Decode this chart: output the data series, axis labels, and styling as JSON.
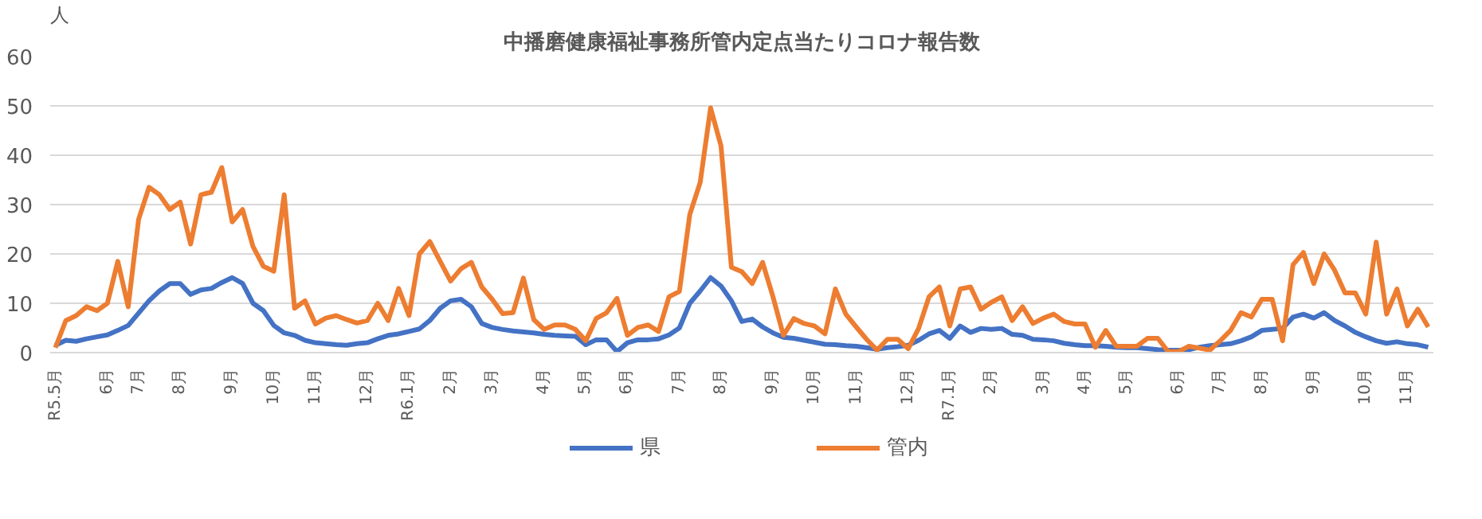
{
  "chart_data": {
    "type": "line",
    "title": "中播磨健康福祉事務所管内定点当たりコロナ報告数",
    "ylabel": "人",
    "categories": [
      "R5.5月",
      null,
      null,
      null,
      null,
      "6月",
      null,
      null,
      "7月",
      null,
      null,
      null,
      "8月",
      null,
      null,
      null,
      null,
      "9月",
      null,
      null,
      null,
      "10月",
      null,
      null,
      null,
      "11月",
      null,
      null,
      null,
      null,
      "12月",
      null,
      null,
      null,
      "R6.1月",
      null,
      null,
      null,
      "2月",
      null,
      null,
      null,
      "3月",
      null,
      null,
      null,
      null,
      "4月",
      null,
      null,
      null,
      "5月",
      null,
      null,
      null,
      "6月",
      null,
      null,
      null,
      null,
      "7月",
      null,
      null,
      null,
      "8月",
      null,
      null,
      null,
      null,
      "9月",
      null,
      null,
      null,
      "10月",
      null,
      null,
      null,
      "11月",
      null,
      null,
      null,
      null,
      "12月",
      null,
      null,
      null,
      "R7.1月",
      null,
      null,
      null,
      "2月",
      null,
      null,
      null,
      null,
      "3月",
      null,
      null,
      null,
      "4月",
      null,
      null,
      null,
      "5月",
      null,
      null,
      null,
      null,
      "6月",
      null,
      null,
      null,
      "7月",
      null,
      null,
      null,
      "8月",
      null,
      null,
      null,
      null,
      "9月",
      null,
      null,
      null,
      null,
      "10月",
      null,
      null,
      null,
      "11月",
      null,
      null
    ],
    "series": [
      {
        "name": "県",
        "color": "#4472c4",
        "values": [
          1.5,
          2.5,
          2.3,
          2.8,
          3.2,
          3.6,
          4.5,
          5.5,
          8,
          10.5,
          12.5,
          14,
          14,
          11.8,
          12.7,
          13,
          14.2,
          15.2,
          14,
          10,
          8.5,
          5.5,
          4,
          3.5,
          2.5,
          2,
          1.8,
          1.6,
          1.5,
          1.8,
          2,
          2.8,
          3.5,
          3.8,
          4.3,
          4.8,
          6.5,
          9,
          10.5,
          10.8,
          9.3,
          5.9,
          5.1,
          4.7,
          4.4,
          4.2,
          4.0,
          3.7,
          3.5,
          3.4,
          3.3,
          1.6,
          2.6,
          2.6,
          0.2,
          2.0,
          2.6,
          2.6,
          2.8,
          3.6,
          5.0,
          10,
          12.5,
          15.2,
          13.5,
          10.5,
          6.3,
          6.8,
          5.2,
          4.0,
          3.1,
          2.9,
          2.5,
          2.1,
          1.7,
          1.6,
          1.4,
          1.3,
          1.0,
          0.7,
          1.0,
          1.2,
          1.5,
          2.5,
          3.8,
          4.5,
          2.9,
          5.4,
          4.1,
          4.9,
          4.7,
          4.9,
          3.7,
          3.5,
          2.7,
          2.6,
          2.4,
          1.9,
          1.6,
          1.4,
          1.4,
          1.3,
          1.1,
          1.0,
          1.0,
          0.8,
          0.6,
          0.5,
          0.5,
          0.6,
          1.1,
          1.4,
          1.6,
          1.8,
          2.4,
          3.2,
          4.5,
          4.7,
          4.9,
          7.2,
          7.8,
          7.0,
          8.1,
          6.5,
          5.4,
          4.1,
          3.2,
          2.4,
          1.9,
          2.2,
          1.8,
          1.6,
          1.1
        ]
      },
      {
        "name": "管内",
        "color": "#ed7d31",
        "values": [
          1,
          6.5,
          7.5,
          9.3,
          8.5,
          10,
          18.5,
          9.3,
          27,
          33.5,
          32,
          29,
          30.5,
          22,
          32,
          32.5,
          37.5,
          26.5,
          29,
          21.5,
          17.5,
          16.5,
          32,
          9,
          10.5,
          5.8,
          7,
          7.5,
          6.7,
          6,
          6.5,
          10,
          6.5,
          13,
          7.5,
          20,
          22.5,
          18.5,
          14.5,
          17,
          18.3,
          13.3,
          10.8,
          7.9,
          8.1,
          15.1,
          6.7,
          4.7,
          5.6,
          5.6,
          4.7,
          2.4,
          6.9,
          8.1,
          11,
          3.5,
          5.1,
          5.6,
          4.3,
          11.3,
          12.4,
          28,
          34.5,
          49.6,
          41.9,
          17.3,
          16.4,
          14,
          18.3,
          11.3,
          3.5,
          6.9,
          5.9,
          5.4,
          3.8,
          12.9,
          7.8,
          5.2,
          2.7,
          0.5,
          2.7,
          2.7,
          0.8,
          4.9,
          11.3,
          13.3,
          5.4,
          12.9,
          13.3,
          8.8,
          10.2,
          11.3,
          6.5,
          9.3,
          5.9,
          7,
          7.8,
          6.3,
          5.8,
          5.8,
          1.1,
          4.5,
          1.3,
          1.3,
          1.3,
          2.9,
          2.9,
          0.2,
          0.2,
          1.3,
          0.9,
          0.5,
          2.4,
          4.5,
          8.1,
          7.2,
          10.8,
          10.8,
          2.4,
          17.8,
          20.3,
          14,
          20,
          16.7,
          12.1,
          12.1,
          7.8,
          22.4,
          7.8,
          12.9,
          5.4,
          8.8,
          5.2
        ]
      }
    ],
    "ylim": [
      0,
      60
    ],
    "yticks": [
      0,
      10,
      20,
      30,
      40,
      50,
      60
    ],
    "grid": "y",
    "legend": "bottom",
    "marker": "none",
    "line_style": "solid"
  }
}
